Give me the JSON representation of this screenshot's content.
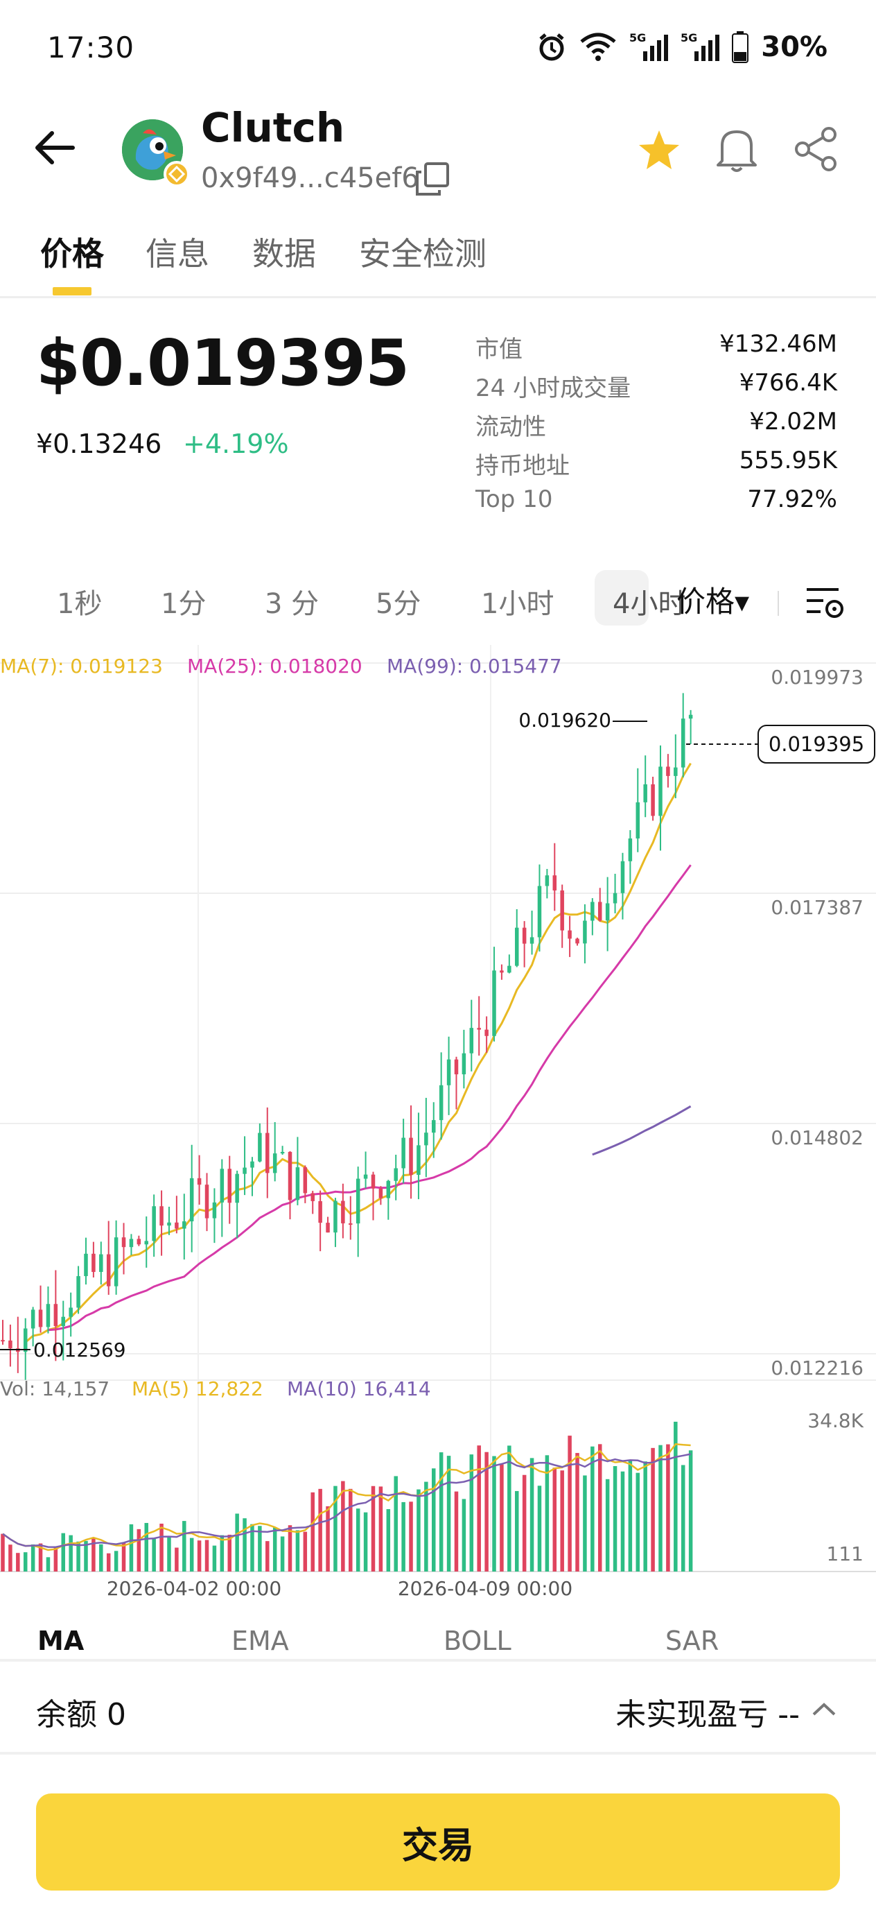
{
  "status_bar": {
    "time": "17:30",
    "battery": "30%",
    "network_label": "5G"
  },
  "token": {
    "name": "Clutch",
    "address": "0x9f49...c45ef6"
  },
  "tabs": [
    "价格",
    "信息",
    "数据",
    "安全检测"
  ],
  "price": {
    "usd": "$0.019395",
    "cny": "¥0.13246",
    "change": "+4.19%"
  },
  "stats": [
    {
      "label": "市值",
      "value": "¥132.46M"
    },
    {
      "label": "24 小时成交量",
      "value": "¥766.4K"
    },
    {
      "label": "流动性",
      "value": "¥2.02M"
    },
    {
      "label": "持币地址",
      "value": "555.95K"
    },
    {
      "label": "Top 10",
      "value": "77.92%"
    }
  ],
  "intervals": [
    "1秒",
    "1分",
    "3 分",
    "5分",
    "1小时",
    "4小时"
  ],
  "price_dropdown": "价格▾",
  "indicator_tabs": [
    "MA",
    "EMA",
    "BOLL",
    "SAR"
  ],
  "balance": "余额 0",
  "unrealized_pnl": "未实现盈亏 --",
  "trade_button": "交易",
  "colors": {
    "up": "#2ebd85",
    "down": "#e0445e",
    "ma7": "#e8b923",
    "ma25": "#d63aa8",
    "ma99": "#7b5fb0",
    "accent": "#fad53c"
  },
  "chart_data": {
    "type": "candlestick",
    "legend": [
      "MA(7): 0.019123",
      "MA(25): 0.018020",
      "MA(99): 0.015477"
    ],
    "y_ticks": [
      "0.019973",
      "0.017387",
      "0.014802",
      "0.012216"
    ],
    "y_range": [
      0.012216,
      0.019973
    ],
    "current_price_label": "0.019395",
    "high_label": "0.019620",
    "low_label": "0.012569",
    "x_labels": [
      "2026-04-02 00:00",
      "2026-04-09 00:00"
    ],
    "volume_legend": [
      "Vol: 14,157",
      "MA(5) 12,822",
      "MA(10) 16,414"
    ],
    "volume_ticks": [
      "34.8K",
      "111"
    ],
    "volume_max": 34800,
    "candles": [],
    "ma7": [],
    "ma25": [],
    "ma99": []
  }
}
